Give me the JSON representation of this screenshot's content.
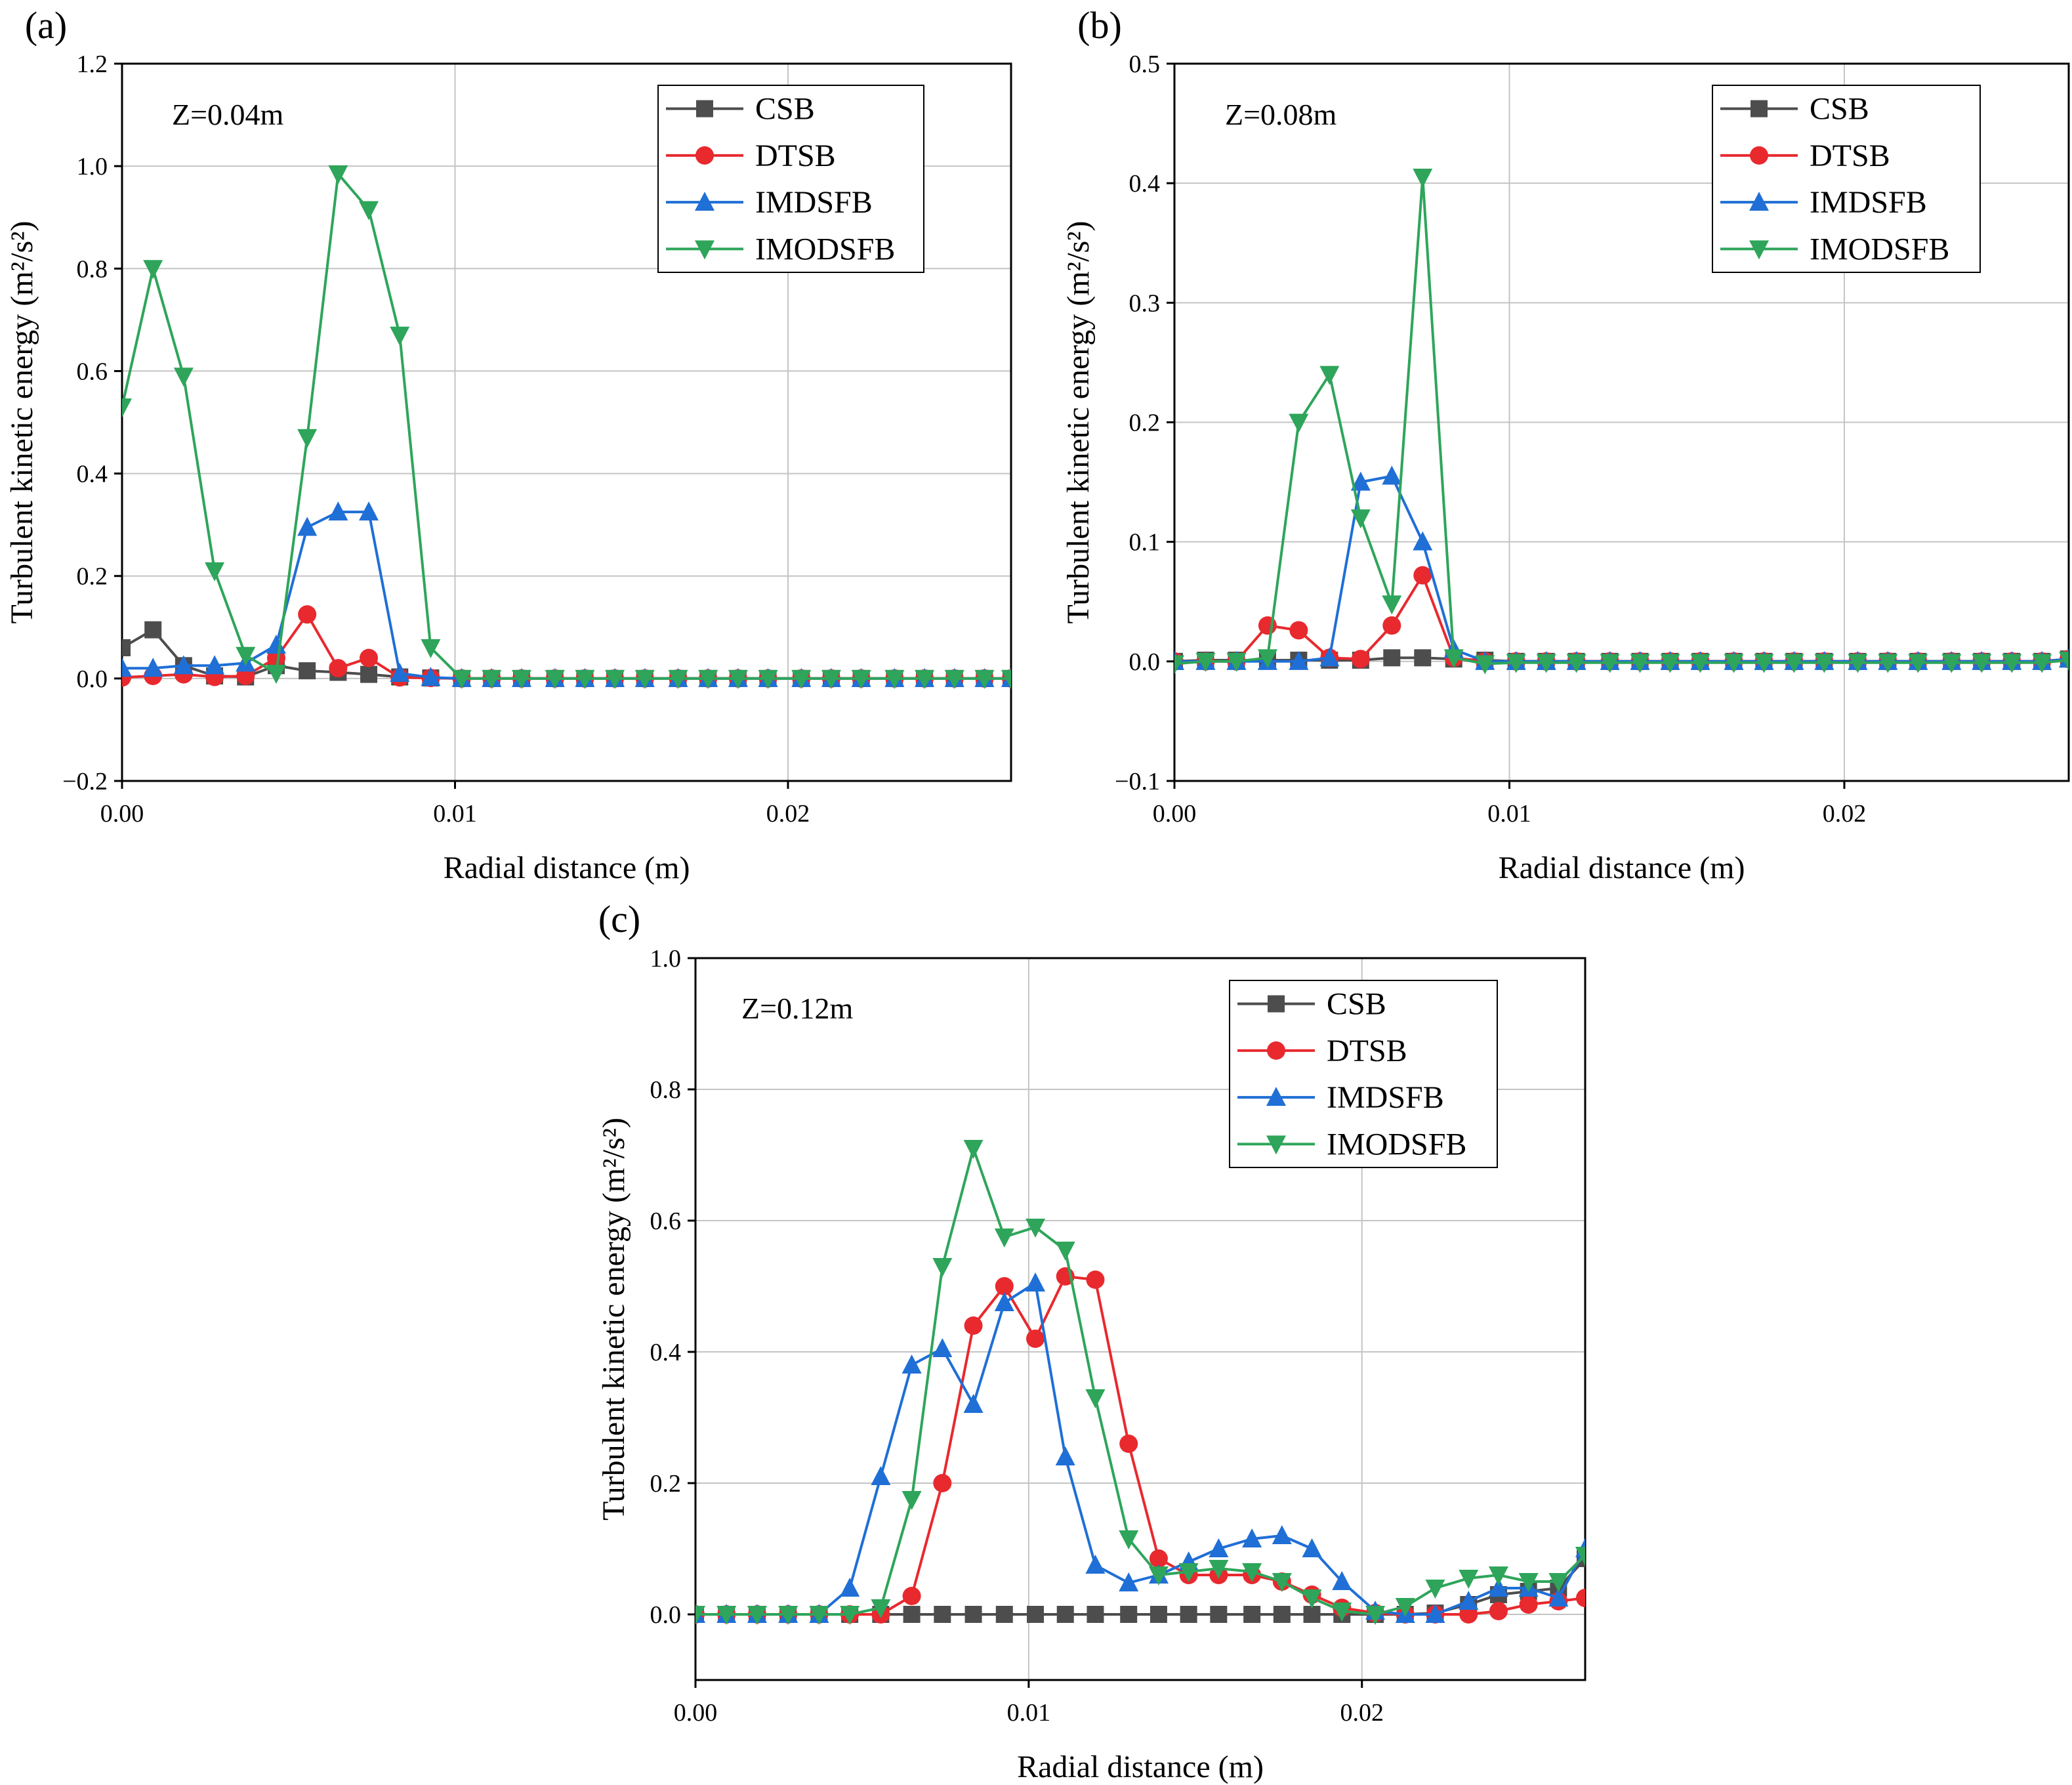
{
  "chart_data": [
    {
      "type": "line",
      "panel_label": "(a)",
      "annotation": "Z=0.04m",
      "xlabel": "Radial distance (m)",
      "ylabel": "Turbulent kinetic energy (m²/s²)",
      "xlim": [
        0,
        0.0267
      ],
      "ylim": [
        -0.2,
        1.2
      ],
      "xticks": [
        0,
        0.01,
        0.02
      ],
      "xtick_labels": [
        "0.00",
        "0.01",
        "0.02"
      ],
      "yticks": [
        -0.2,
        0,
        0.2,
        0.4,
        0.6,
        0.8,
        1.0,
        1.2
      ],
      "ytick_labels": [
        "−0.2",
        "0.0",
        "0.2",
        "0.4",
        "0.6",
        "0.8",
        "1.0",
        "1.2"
      ],
      "grid": true,
      "legend_position": "top-right",
      "x": [
        0,
        0.00093,
        0.00185,
        0.00278,
        0.00371,
        0.00463,
        0.00556,
        0.00649,
        0.00741,
        0.00834,
        0.00927,
        0.0102,
        0.0111,
        0.012,
        0.013,
        0.0139,
        0.0148,
        0.0157,
        0.0167,
        0.0176,
        0.0185,
        0.0194,
        0.0204,
        0.0213,
        0.0222,
        0.0232,
        0.0241,
        0.025,
        0.0259,
        0.0267
      ],
      "series": [
        {
          "name": "CSB",
          "values": [
            0.06,
            0.095,
            0.025,
            0.005,
            0.003,
            0.025,
            0.015,
            0.012,
            0.008,
            0.003,
            0.001,
            0,
            0,
            0,
            0,
            0,
            0,
            0,
            0,
            0,
            0,
            0,
            0,
            0,
            0,
            0,
            0,
            0,
            0,
            0
          ]
        },
        {
          "name": "DTSB",
          "values": [
            0.002,
            0.005,
            0.008,
            0.003,
            0.005,
            0.04,
            0.125,
            0.02,
            0.04,
            0.002,
            0.001,
            0,
            0,
            0,
            0,
            0,
            0,
            0,
            0,
            0,
            0,
            0,
            0,
            0,
            0,
            0,
            0,
            0,
            0,
            0
          ]
        },
        {
          "name": "IMDSFB",
          "values": [
            0.02,
            0.02,
            0.025,
            0.025,
            0.03,
            0.065,
            0.295,
            0.325,
            0.325,
            0.01,
            0.002,
            0,
            0,
            0,
            0,
            0,
            0,
            0,
            0,
            0,
            0,
            0,
            0,
            0,
            0,
            0,
            0,
            0,
            0,
            0
          ]
        },
        {
          "name": "IMODSFB",
          "values": [
            0.53,
            0.8,
            0.59,
            0.21,
            0.045,
            0.01,
            0.47,
            0.985,
            0.915,
            0.67,
            0.06,
            0,
            0,
            0,
            0,
            0,
            0,
            0,
            0,
            0,
            0,
            0,
            0,
            0,
            0,
            0,
            0,
            0,
            0,
            0
          ]
        }
      ]
    },
    {
      "type": "line",
      "panel_label": "(b)",
      "annotation": "Z=0.08m",
      "xlabel": "Radial distance (m)",
      "ylabel": "Turbulent kinetic energy (m²/s²)",
      "xlim": [
        0,
        0.0267
      ],
      "ylim": [
        -0.1,
        0.5
      ],
      "xticks": [
        0,
        0.01,
        0.02
      ],
      "xtick_labels": [
        "0.00",
        "0.01",
        "0.02"
      ],
      "yticks": [
        -0.1,
        0,
        0.1,
        0.2,
        0.3,
        0.4,
        0.5
      ],
      "ytick_labels": [
        "−0.1",
        "0.0",
        "0.1",
        "0.2",
        "0.3",
        "0.4",
        "0.5"
      ],
      "grid": true,
      "legend_position": "top-right",
      "x": [
        0,
        0.00093,
        0.00185,
        0.00278,
        0.00371,
        0.00463,
        0.00556,
        0.00649,
        0.00741,
        0.00834,
        0.00927,
        0.0102,
        0.0111,
        0.012,
        0.013,
        0.0139,
        0.0148,
        0.0157,
        0.0167,
        0.0176,
        0.0185,
        0.0194,
        0.0204,
        0.0213,
        0.0222,
        0.0232,
        0.0241,
        0.025,
        0.0259,
        0.0267
      ],
      "series": [
        {
          "name": "CSB",
          "values": [
            0,
            0.001,
            0.001,
            0.001,
            0.001,
            0.001,
            0.001,
            0.003,
            0.003,
            0.002,
            0.001,
            0,
            0,
            0,
            0,
            0,
            0,
            0,
            0,
            0,
            0,
            0,
            0,
            0,
            0,
            0,
            0,
            0,
            0,
            0.002
          ]
        },
        {
          "name": "DTSB",
          "values": [
            0,
            0,
            0,
            0.03,
            0.026,
            0.003,
            0.002,
            0.03,
            0.072,
            0.003,
            0,
            0,
            0,
            0,
            0,
            0,
            0,
            0,
            0,
            0,
            0,
            0,
            0,
            0,
            0,
            0,
            0,
            0,
            0,
            0.002
          ]
        },
        {
          "name": "IMDSFB",
          "values": [
            0,
            0,
            0,
            0,
            0,
            0.003,
            0.15,
            0.155,
            0.1,
            0.01,
            0,
            0,
            0,
            0,
            0,
            0,
            0,
            0,
            0,
            0,
            0,
            0,
            0,
            0,
            0,
            0,
            0,
            0,
            0,
            0.002
          ]
        },
        {
          "name": "IMODSFB",
          "values": [
            -0.002,
            0,
            0,
            0.003,
            0.2,
            0.24,
            0.12,
            0.048,
            0.405,
            0.003,
            -0.002,
            -0.001,
            -0.001,
            -0.001,
            -0.001,
            -0.001,
            -0.001,
            -0.001,
            -0.001,
            -0.001,
            -0.001,
            -0.001,
            -0.001,
            -0.001,
            -0.001,
            -0.001,
            -0.001,
            -0.001,
            -0.001,
            0.001
          ]
        }
      ]
    },
    {
      "type": "line",
      "panel_label": "(c)",
      "annotation": "Z=0.12m",
      "xlabel": "Radial distance (m)",
      "ylabel": "Turbulent kinetic energy (m²/s²)",
      "xlim": [
        0,
        0.0267
      ],
      "ylim": [
        -0.1,
        1.0
      ],
      "xticks": [
        0,
        0.01,
        0.02
      ],
      "xtick_labels": [
        "0.00",
        "0.01",
        "0.02"
      ],
      "yticks": [
        0,
        0.2,
        0.4,
        0.6,
        0.8,
        1.0
      ],
      "ytick_labels": [
        "0.0",
        "0.2",
        "0.4",
        "0.6",
        "0.8",
        "1.0"
      ],
      "grid": true,
      "legend_position": "top-right",
      "x": [
        0,
        0.00093,
        0.00185,
        0.00278,
        0.00371,
        0.00463,
        0.00556,
        0.00649,
        0.00741,
        0.00834,
        0.00927,
        0.0102,
        0.0111,
        0.012,
        0.013,
        0.0139,
        0.0148,
        0.0157,
        0.0167,
        0.0176,
        0.0185,
        0.0194,
        0.0204,
        0.0213,
        0.0222,
        0.0232,
        0.0241,
        0.025,
        0.0259,
        0.0267
      ],
      "series": [
        {
          "name": "CSB",
          "values": [
            0,
            0,
            0,
            0,
            0,
            0,
            0,
            0,
            0,
            0,
            0,
            0,
            0,
            0,
            0,
            0,
            0,
            0,
            0,
            0,
            0,
            0,
            0,
            0,
            0.002,
            0.015,
            0.03,
            0.035,
            0.04,
            0.085
          ]
        },
        {
          "name": "DTSB",
          "values": [
            0,
            0,
            0,
            0,
            0,
            0,
            0,
            0.028,
            0.2,
            0.44,
            0.5,
            0.42,
            0.515,
            0.51,
            0.26,
            0.085,
            0.06,
            0.06,
            0.06,
            0.05,
            0.03,
            0.01,
            0.002,
            0,
            0,
            0,
            0.005,
            0.015,
            0.02,
            0.025
          ]
        },
        {
          "name": "IMDSFB",
          "values": [
            0,
            0,
            0,
            0,
            0,
            0.04,
            0.21,
            0.38,
            0.405,
            0.32,
            0.475,
            0.505,
            0.24,
            0.075,
            0.048,
            0.06,
            0.08,
            0.1,
            0.115,
            0.12,
            0.1,
            0.05,
            0.005,
            0,
            0,
            0.02,
            0.04,
            0.04,
            0.025,
            0.1
          ]
        },
        {
          "name": "IMODSFB",
          "values": [
            0,
            0,
            0,
            0,
            0,
            0,
            0.01,
            0.175,
            0.53,
            0.71,
            0.575,
            0.59,
            0.555,
            0.33,
            0.115,
            0.06,
            0.065,
            0.07,
            0.065,
            0.05,
            0.025,
            0.005,
            0,
            0.012,
            0.04,
            0.055,
            0.06,
            0.05,
            0.05,
            0.09
          ]
        }
      ]
    }
  ],
  "series_style": [
    {
      "name": "CSB",
      "color": "#4d4d4d",
      "marker": "square"
    },
    {
      "name": "DTSB",
      "color": "#e8292e",
      "marker": "circle"
    },
    {
      "name": "IMDSFB",
      "color": "#1f6fd6",
      "marker": "triangle-up"
    },
    {
      "name": "IMODSFB",
      "color": "#2ea55a",
      "marker": "triangle-down"
    }
  ]
}
